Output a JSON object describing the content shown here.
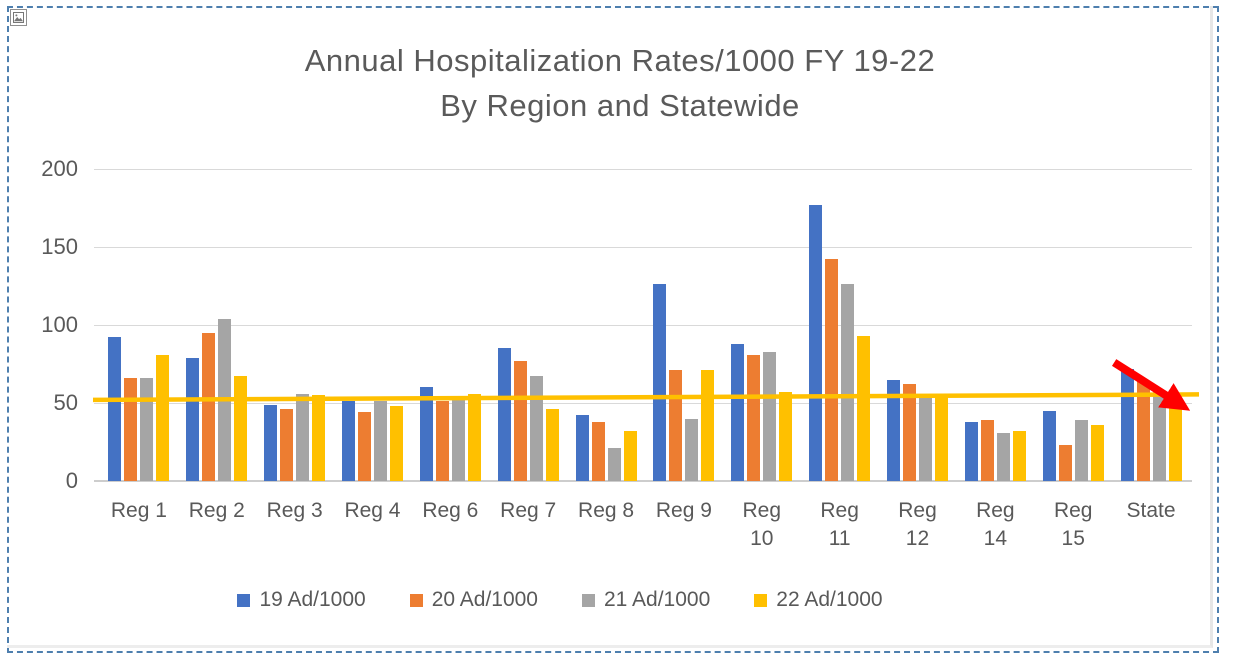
{
  "page": {
    "selection_border_color": "#4e7fae",
    "picture_icon": "picture-icon"
  },
  "chart_data": {
    "type": "bar",
    "title_line1": "Annual Hospitalization Rates/1000 FY 19-22",
    "title_line2": "By Region and Statewide",
    "categories": [
      "Reg 1",
      "Reg 2",
      "Reg 3",
      "Reg 4",
      "Reg 6",
      "Reg 7",
      "Reg 8",
      "Reg 9",
      "Reg 10",
      "Reg 11",
      "Reg 12",
      "Reg 14",
      "Reg 15",
      "State"
    ],
    "category_label_lines": [
      [
        "Reg 1"
      ],
      [
        "Reg 2"
      ],
      [
        "Reg 3"
      ],
      [
        "Reg 4"
      ],
      [
        "Reg 6"
      ],
      [
        "Reg 7"
      ],
      [
        "Reg 8"
      ],
      [
        "Reg 9"
      ],
      [
        "Reg",
        "10"
      ],
      [
        "Reg",
        "11"
      ],
      [
        "Reg",
        "12"
      ],
      [
        "Reg",
        "14"
      ],
      [
        "Reg",
        "15"
      ],
      [
        "State"
      ]
    ],
    "series": [
      {
        "name": "19 Ad/1000",
        "color": "#4472C4",
        "values": [
          92,
          79,
          49,
          51,
          60,
          85,
          42,
          126,
          88,
          177,
          65,
          38,
          45,
          72
        ]
      },
      {
        "name": "20 Ad/1000",
        "color": "#ED7D31",
        "values": [
          66,
          95,
          46,
          44,
          51,
          77,
          38,
          71,
          81,
          142,
          62,
          39,
          23,
          64
        ]
      },
      {
        "name": "21 Ad/1000",
        "color": "#A5A5A5",
        "values": [
          66,
          104,
          56,
          51,
          52,
          67,
          21,
          40,
          83,
          126,
          54,
          31,
          39,
          58
        ]
      },
      {
        "name": "22 Ad/1000",
        "color": "#FFC000",
        "values": [
          81,
          67,
          55,
          48,
          56,
          46,
          32,
          71,
          57,
          93,
          55,
          32,
          36,
          56
        ]
      }
    ],
    "ylim": [
      0,
      200
    ],
    "yticks": [
      0,
      50,
      100,
      150,
      200
    ],
    "grid": true,
    "legend_position": "bottom",
    "annotations": [
      {
        "type": "trendline",
        "series": "22 Ad/1000",
        "color": "#FFC000",
        "start_value": 52,
        "end_value": 55.5,
        "description": "yellow linear trendline spanning all categories"
      },
      {
        "type": "arrow",
        "color": "#FF0000",
        "category": "State",
        "from_value": 76,
        "to_value": 50,
        "description": "red annotation arrow pointing down-right over the State bars"
      }
    ]
  }
}
